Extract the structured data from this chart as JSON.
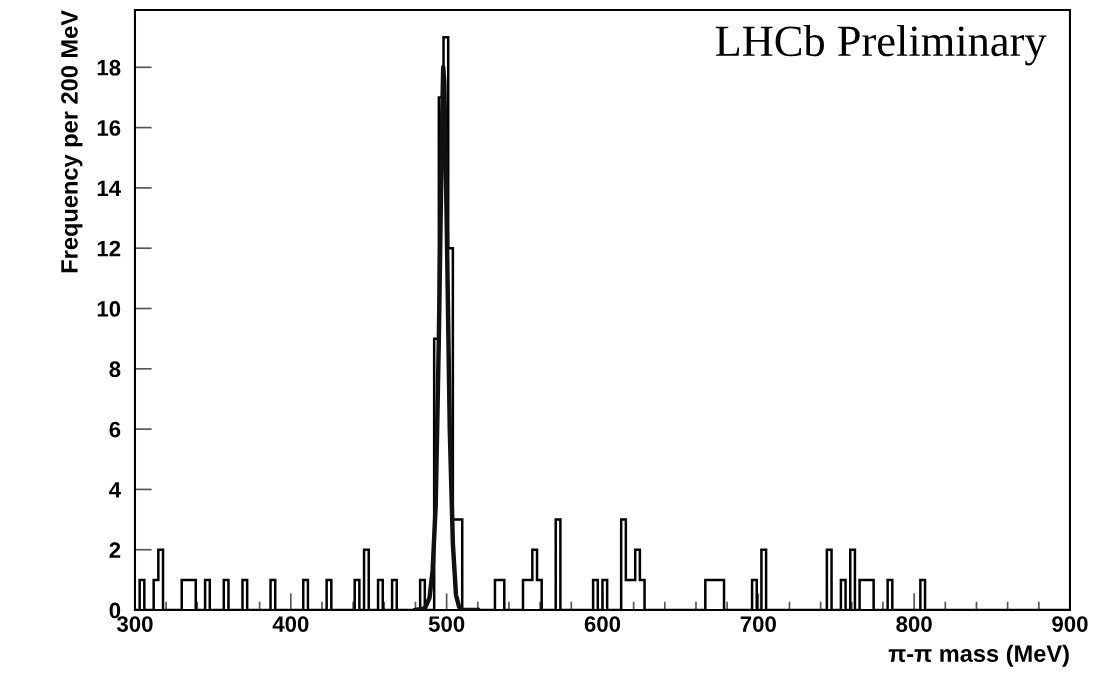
{
  "chart_data": {
    "type": "histogram",
    "xlabel": "π-π mass (MeV)",
    "ylabel": "Frequency per 200 MeV",
    "annotations": [
      "LHCb Preliminary"
    ],
    "xlim": [
      300,
      900
    ],
    "xticks": [
      300,
      400,
      500,
      600,
      700,
      800,
      900
    ],
    "ylim": [
      0,
      19.9
    ],
    "yticks": [
      0,
      2,
      4,
      6,
      8,
      10,
      12,
      14,
      16,
      18
    ],
    "grid": false,
    "legend": false,
    "series": [
      {
        "color": "#000000",
        "bins": [
          300,
          303,
          306,
          312,
          315,
          318,
          330,
          333,
          336,
          339,
          345,
          348,
          357,
          360,
          369,
          372,
          387,
          390,
          408,
          411,
          423,
          426,
          441,
          444,
          447,
          450,
          456,
          459,
          465,
          468,
          483,
          486,
          492,
          495,
          498,
          501,
          504,
          507,
          510,
          531,
          534,
          537,
          549,
          552,
          555,
          558,
          561,
          570,
          573,
          594,
          597,
          600,
          603,
          612,
          615,
          618,
          621,
          624,
          627,
          666,
          669,
          672,
          675,
          678,
          696,
          699,
          702,
          705,
          744,
          747,
          753,
          756,
          759,
          762,
          765,
          768,
          771,
          774,
          783,
          786,
          804,
          807,
          900
        ],
        "values": [
          0,
          1,
          0,
          1,
          2,
          0,
          1,
          1,
          1,
          0,
          1,
          0,
          1,
          0,
          1,
          0,
          1,
          0,
          1,
          0,
          1,
          0,
          1,
          0,
          2,
          0,
          1,
          0,
          1,
          0,
          1,
          0,
          9,
          17,
          19,
          12,
          3,
          3,
          0,
          1,
          1,
          0,
          1,
          1,
          2,
          1,
          0,
          3,
          0,
          1,
          0,
          1,
          0,
          3,
          1,
          1,
          2,
          1,
          0,
          1,
          1,
          1,
          1,
          0,
          1,
          0,
          2,
          0,
          2,
          0,
          1,
          0,
          2,
          0,
          1,
          1,
          1,
          0,
          1,
          0,
          1,
          0
        ]
      },
      {
        "type": "line",
        "color": "#111111",
        "x": [
          480,
          486,
          489,
          491,
          493,
          495,
          496,
          497,
          497.8,
          498.5,
          500,
          502,
          504,
          506,
          508,
          510,
          520
        ],
        "values": [
          0,
          0.05,
          0.4,
          1.3,
          3.5,
          9,
          12.5,
          16,
          18,
          17.5,
          13,
          6,
          2.2,
          0.5,
          0.1,
          0,
          0
        ]
      }
    ]
  }
}
